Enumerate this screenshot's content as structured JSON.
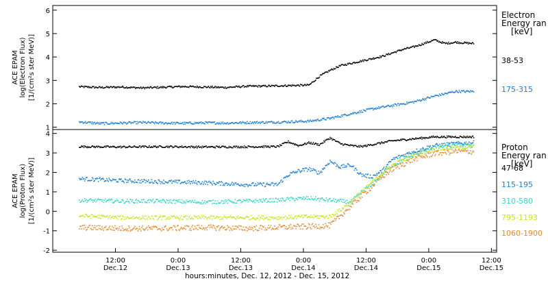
{
  "chart_data": [
    {
      "type": "scatter",
      "ylabel": [
        "ACE EPAM",
        "log(Electron Flux)",
        "[1/(cm²s ster MeV)]"
      ],
      "ylim": [
        0.9,
        6.2
      ],
      "yticks": [
        "1",
        "2",
        "3",
        "4",
        "5",
        "6"
      ],
      "legend_title": [
        "Electron",
        "Energy ran",
        "[keV]"
      ],
      "series": [
        {
          "name": "38-53",
          "color": "#000000",
          "x": [
            0,
            4,
            8,
            12,
            16,
            20,
            24,
            28,
            32,
            36,
            40,
            44,
            46,
            48,
            50,
            52,
            54,
            56,
            58,
            60,
            62,
            64,
            66,
            68,
            70,
            72,
            74,
            75.5
          ],
          "y": [
            2.75,
            2.72,
            2.74,
            2.7,
            2.73,
            2.76,
            2.74,
            2.72,
            2.77,
            2.78,
            2.8,
            2.82,
            3.2,
            3.45,
            3.65,
            3.75,
            3.85,
            3.95,
            4.05,
            4.2,
            4.35,
            4.45,
            4.6,
            4.75,
            4.6,
            4.65,
            4.62,
            4.6
          ]
        },
        {
          "name": "175-315",
          "color": "#1e7fd0",
          "x": [
            0,
            4,
            8,
            12,
            16,
            20,
            24,
            28,
            32,
            36,
            40,
            44,
            48,
            52,
            56,
            60,
            64,
            68,
            72,
            75.5
          ],
          "y": [
            1.25,
            1.18,
            1.2,
            1.22,
            1.2,
            1.19,
            1.21,
            1.2,
            1.22,
            1.23,
            1.25,
            1.28,
            1.4,
            1.6,
            1.8,
            1.95,
            2.1,
            2.35,
            2.55,
            2.55
          ]
        }
      ]
    },
    {
      "type": "scatter",
      "ylabel": [
        "ACE EPAM",
        "log(Proton Flux)",
        "[1/(cm²s ster MeV)]"
      ],
      "ylim": [
        -2.1,
        4.2
      ],
      "yticks": [
        "-2",
        "-1",
        "0",
        "1",
        "2",
        "3",
        "4"
      ],
      "legend_title": [
        "Proton",
        "Energy ran",
        "[keV]"
      ],
      "series": [
        {
          "name": "47-68",
          "color": "#000000",
          "x": [
            0,
            8,
            16,
            24,
            32,
            38,
            40,
            42,
            44,
            46,
            48,
            50,
            52,
            54,
            56,
            60,
            64,
            68,
            72,
            75.5
          ],
          "y": [
            3.35,
            3.33,
            3.35,
            3.33,
            3.34,
            3.35,
            3.6,
            3.4,
            3.55,
            3.45,
            3.8,
            3.5,
            3.4,
            3.35,
            3.45,
            3.65,
            3.75,
            3.85,
            3.85,
            3.85
          ]
        },
        {
          "name": "115-195",
          "color": "#1e7fd0",
          "x": [
            0,
            8,
            16,
            24,
            32,
            38,
            40,
            42,
            44,
            46,
            48,
            50,
            52,
            54,
            56,
            58,
            60,
            64,
            68,
            72,
            75.5
          ],
          "y": [
            1.7,
            1.6,
            1.55,
            1.5,
            1.4,
            1.4,
            1.9,
            2.1,
            2.2,
            2.0,
            2.6,
            2.3,
            2.4,
            1.9,
            1.8,
            2.1,
            2.7,
            3.1,
            3.4,
            3.5,
            3.55
          ]
        },
        {
          "name": "310-580",
          "color": "#33d4c8",
          "x": [
            0,
            8,
            16,
            24,
            32,
            38,
            40,
            44,
            48,
            50,
            52,
            54,
            56,
            58,
            60,
            64,
            68,
            72,
            75.5
          ],
          "y": [
            0.6,
            0.55,
            0.55,
            0.5,
            0.55,
            0.6,
            0.65,
            0.7,
            0.6,
            0.55,
            0.5,
            1.0,
            1.4,
            1.9,
            2.4,
            2.9,
            3.3,
            3.4,
            3.4
          ]
        },
        {
          "name": "795-1193",
          "color": "#c8e61e",
          "x": [
            0,
            8,
            16,
            24,
            32,
            38,
            44,
            48,
            50,
            52,
            54,
            56,
            58,
            60,
            64,
            68,
            72,
            75.5
          ],
          "y": [
            -0.2,
            -0.3,
            -0.3,
            -0.3,
            -0.3,
            -0.3,
            -0.25,
            -0.25,
            0.1,
            0.5,
            1.0,
            1.5,
            2.0,
            2.4,
            2.9,
            3.2,
            3.3,
            3.35
          ]
        },
        {
          "name": "1060-1900",
          "color": "#e8882a",
          "x": [
            0,
            8,
            16,
            24,
            32,
            38,
            44,
            48,
            50,
            52,
            54,
            56,
            58,
            60,
            64,
            68,
            72,
            75.5
          ],
          "y": [
            -0.8,
            -0.85,
            -0.85,
            -0.8,
            -0.85,
            -0.8,
            -0.75,
            -0.7,
            -0.2,
            0.3,
            0.8,
            1.3,
            1.8,
            2.2,
            2.7,
            3.0,
            3.1,
            3.1
          ]
        }
      ]
    }
  ],
  "xaxis": {
    "xlim": [
      -5,
      80
    ],
    "ticks": [
      {
        "x": 7,
        "time": "12:00",
        "date": "Dec.12"
      },
      {
        "x": 19,
        "time": "0:00",
        "date": "Dec.13"
      },
      {
        "x": 31,
        "time": "12:00",
        "date": "Dec.13"
      },
      {
        "x": 43,
        "time": "0:00",
        "date": "Dec.14"
      },
      {
        "x": 55,
        "time": "12:00",
        "date": "Dec.14"
      },
      {
        "x": 67,
        "time": "0:00",
        "date": "Dec.15"
      },
      {
        "x": 79,
        "time": "12:00",
        "date": "Dec.15"
      }
    ],
    "label": "hours:minutes, Dec. 12, 2012 - Dec. 15, 2012"
  }
}
